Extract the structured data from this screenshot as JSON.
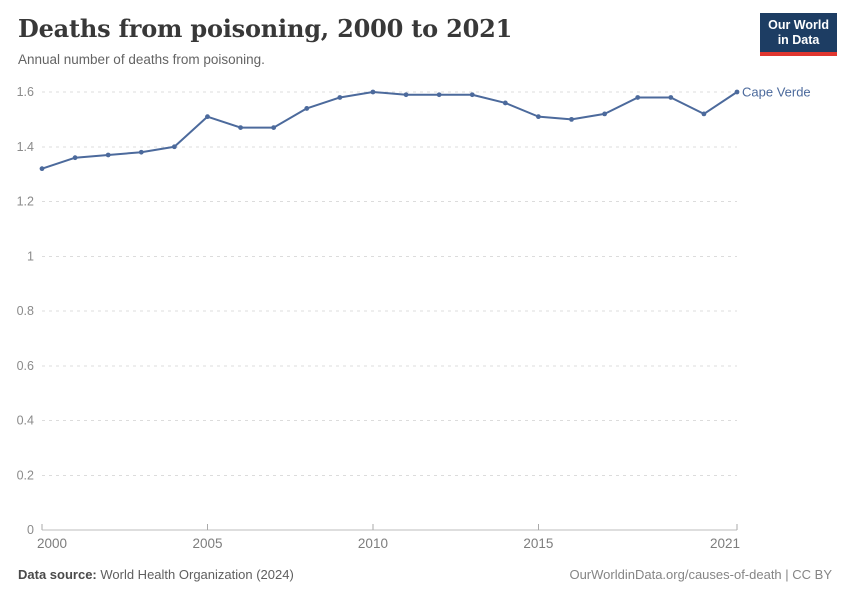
{
  "header": {
    "title": "Deaths from poisoning, 2000 to 2021",
    "subtitle": "Annual number of deaths from poisoning.",
    "logo": {
      "line1": "Our World",
      "line2": "in Data"
    }
  },
  "chart_data": {
    "type": "line",
    "title": "Deaths from poisoning, 2000 to 2021",
    "entity": "Cape Verde",
    "x": [
      2000,
      2001,
      2002,
      2003,
      2004,
      2005,
      2006,
      2007,
      2008,
      2009,
      2010,
      2011,
      2012,
      2013,
      2014,
      2015,
      2016,
      2017,
      2018,
      2019,
      2020,
      2021
    ],
    "values": [
      1.32,
      1.36,
      1.37,
      1.38,
      1.4,
      1.51,
      1.47,
      1.47,
      1.54,
      1.58,
      1.6,
      1.59,
      1.59,
      1.59,
      1.56,
      1.51,
      1.5,
      1.52,
      1.58,
      1.58,
      1.52,
      1.6
    ],
    "xlabel": "",
    "ylabel": "",
    "ylim": [
      0,
      1.6
    ],
    "yticks": [
      0,
      0.2,
      0.4,
      0.6,
      0.8,
      1,
      1.2,
      1.4,
      1.6
    ],
    "xticks": [
      2000,
      2005,
      2010,
      2015,
      2021
    ],
    "grid": "horizontal-dashed",
    "legend_position": "end-of-line-label",
    "line_color": "#4c6a9c"
  },
  "footer": {
    "source_label": "Data source:",
    "source_value": " World Health Organization (2024)",
    "credit": "OurWorldinData.org/causes-of-death | CC BY"
  },
  "colors": {
    "accent_line": "#4c6a9c",
    "logo_bg": "#1d3d63",
    "logo_stripe": "#e0362f",
    "title_text": "#383838",
    "axis_text": "#8b8b8b",
    "gridline": "#dcdcdc"
  }
}
